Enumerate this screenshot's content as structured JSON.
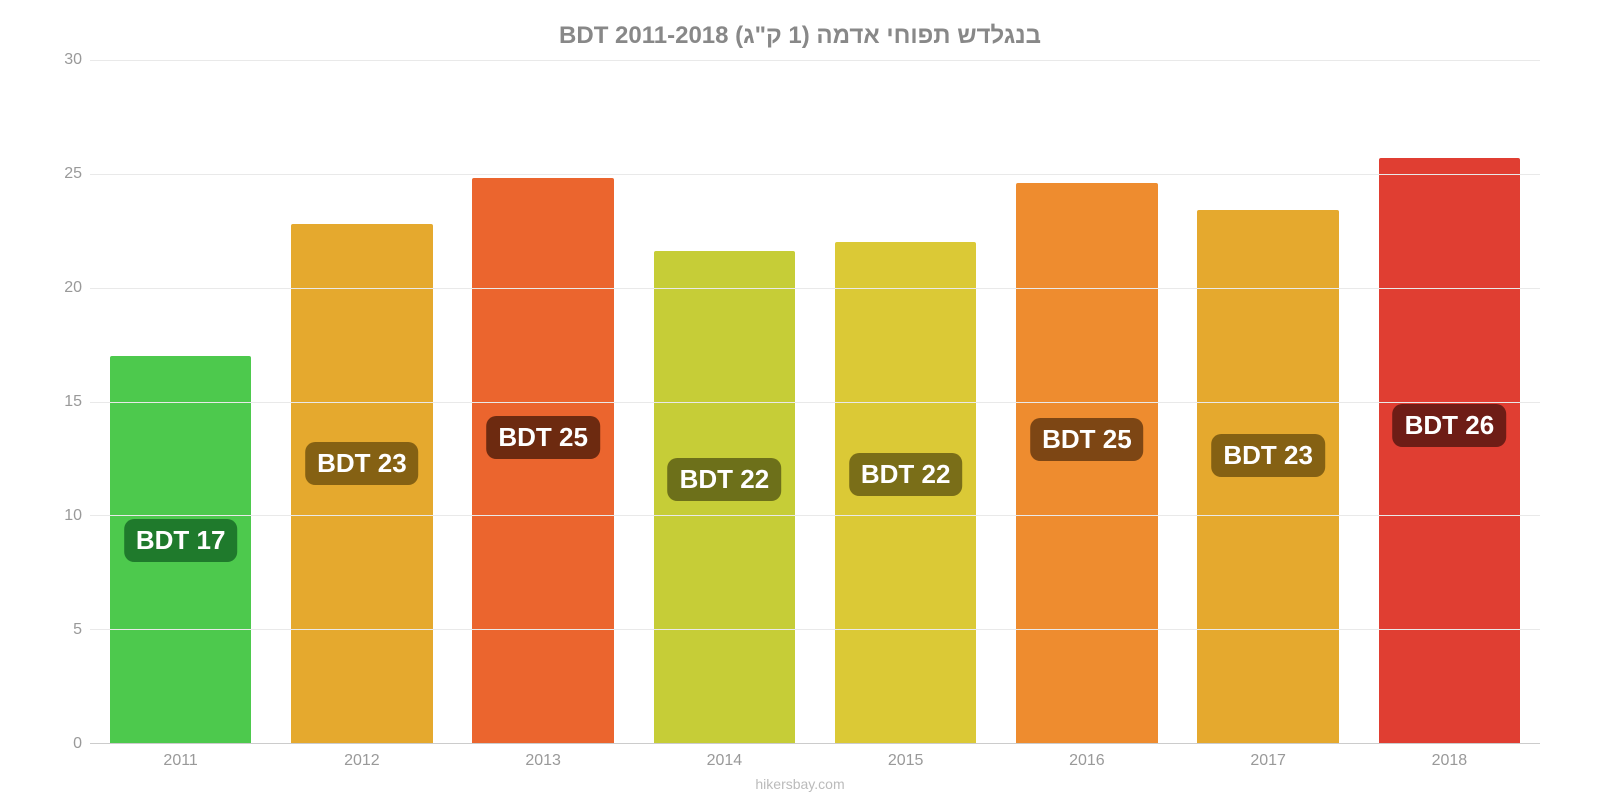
{
  "chart": {
    "type": "bar",
    "title": "בנגלדש תפוחי אדמה (1 ק\"ג) BDT 2011-2018",
    "title_color": "#888888",
    "title_fontsize": 24,
    "background_color": "#ffffff",
    "grid_color": "#e9e9e9",
    "axis_color": "#cccccc",
    "tick_color": "#999999",
    "tick_fontsize": 16,
    "attribution": "hikersbay.com",
    "attribution_color": "#bbbbbb",
    "ylim": [
      0,
      30
    ],
    "ytick_step": 5,
    "yticks": [
      "0",
      "5",
      "10",
      "15",
      "20",
      "25",
      "30"
    ],
    "bar_width": 0.78,
    "label_fontsize": 26,
    "label_text_color": "#ffffff",
    "label_radius": 10,
    "categories": [
      "2011",
      "2012",
      "2013",
      "2014",
      "2015",
      "2016",
      "2017",
      "2018"
    ],
    "values": [
      17.0,
      22.8,
      24.8,
      21.6,
      22.0,
      24.6,
      23.4,
      25.7
    ],
    "bar_labels": [
      "BDT 17",
      "BDT 23",
      "BDT 25",
      "BDT 22",
      "BDT 22",
      "BDT 25",
      "BDT 23",
      "BDT 26"
    ],
    "bar_colors": [
      "#4dc94d",
      "#e5a92e",
      "#eb652e",
      "#c6cd37",
      "#dbc936",
      "#ee8c2f",
      "#e5a92e",
      "#e03e32"
    ],
    "label_bg_colors": [
      "#1f7a2c",
      "#856113",
      "#6d2a10",
      "#6d701a",
      "#7a6e18",
      "#7d4614",
      "#856113",
      "#6e1d16"
    ]
  }
}
